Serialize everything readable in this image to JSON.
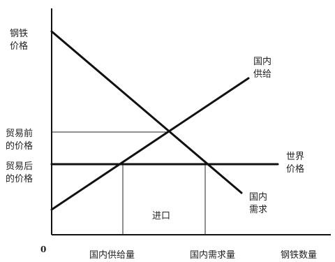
{
  "diagram": {
    "origin_label": "0",
    "y_axis_label": [
      "钢铁",
      "价格"
    ],
    "x_axis_label": "钢铁数量",
    "supply_label": [
      "国内",
      "供给"
    ],
    "demand_label": [
      "国内",
      "需求"
    ],
    "world_price_label": [
      "世界",
      "价格"
    ],
    "pre_trade_price_label": [
      "贸易前",
      "的价格"
    ],
    "post_trade_price_label": [
      "贸易后",
      "的价格"
    ],
    "domestic_supply_qty_label": "国内供给量",
    "domestic_demand_qty_label": "国内需求量",
    "imports_label": "进口"
  }
}
